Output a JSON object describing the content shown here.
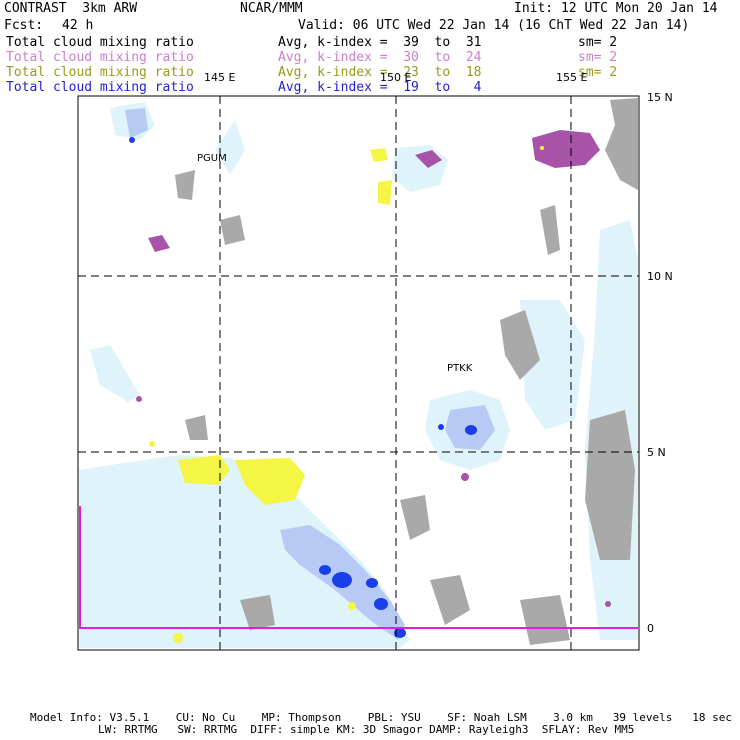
{
  "header": {
    "title": "CONTRAST  3km ARW",
    "center": "NCAR/MMM",
    "init": "Init: 12 UTC Mon 20 Jan 14",
    "fcst_label": "Fcst:",
    "fcst_value": "42 h",
    "valid": "Valid: 06 UTC Wed 22 Jan 14 (16 ChT Wed 22 Jan 14)"
  },
  "fields": [
    {
      "name": "Total cloud mixing ratio",
      "avg": "Avg, k-index =  39  to  31",
      "sm": "sm= 2",
      "color": "#000000"
    },
    {
      "name": "Total cloud mixing ratio",
      "avg": "Avg, k-index =  30  to  24",
      "sm": "sm= 2",
      "color": "#c97fce"
    },
    {
      "name": "Total cloud mixing ratio",
      "avg": "Avg, k-index =  23  to  18",
      "sm": "sm= 2",
      "color": "#9a9a1a"
    },
    {
      "name": "Total cloud mixing ratio",
      "avg": "Avg, k-index =  19  to   4",
      "sm": "",
      "color": "#1f1fd6"
    }
  ],
  "map": {
    "lon_labels": [
      "145 E",
      "150 E",
      "155 E"
    ],
    "lat_labels": [
      "15 N",
      "10 N",
      "5 N",
      "0"
    ],
    "stations": [
      "PGUM",
      "PTKK"
    ],
    "colors": {
      "land": "#a9a9a9",
      "cloud_light": "#dff3fb",
      "cloud_mid": "#b7c9f5",
      "cloud_dense": "#1a3ee8",
      "ice_purple": "#a653a8",
      "yellow": "#f5f545",
      "equator_line": "#e01ee0"
    }
  },
  "footer": {
    "line1": "Model Info: V3.5.1    CU: No Cu    MP: Thompson    PBL: YSU    SF: Noah LSM    3.0 km   39 levels   18 sec",
    "line2": "LW: RRTMG   SW: RRTMG  DIFF: simple KM: 3D Smagor DAMP: Rayleigh3  SFLAY: Rev MM5"
  }
}
